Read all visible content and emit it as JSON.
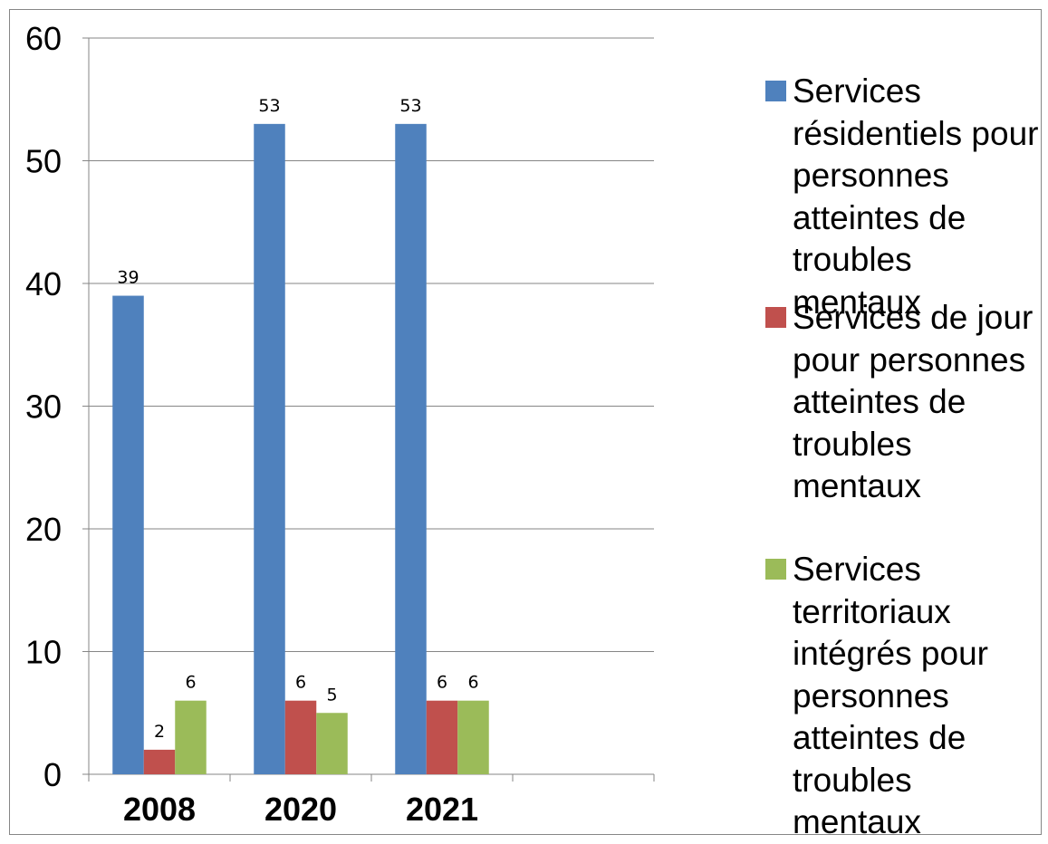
{
  "chart_data": {
    "type": "bar",
    "categories": [
      "2008",
      "2020",
      "2021",
      ""
    ],
    "series": [
      {
        "name": "Services résidentiels pour personnes atteintes de troubles mentaux",
        "color": "#4f81bd",
        "values": [
          39,
          53,
          53,
          null
        ],
        "labels": [
          "39",
          "53",
          "53",
          ""
        ]
      },
      {
        "name": "Services de jour pour personnes atteintes de troubles mentaux",
        "color": "#c0504d",
        "values": [
          2,
          6,
          6,
          null
        ],
        "labels": [
          "2",
          "6",
          "6",
          ""
        ]
      },
      {
        "name": "Services territoriaux intégrés pour personnes atteintes de troubles mentaux",
        "color": "#9bbb59",
        "values": [
          6,
          5,
          6,
          null
        ],
        "labels": [
          "6",
          "5",
          "6",
          ""
        ]
      }
    ],
    "ylim": [
      0,
      60
    ],
    "yticks": [
      "0",
      "10",
      "20",
      "30",
      "40",
      "50",
      "60"
    ],
    "grid": true,
    "legend": "right"
  }
}
